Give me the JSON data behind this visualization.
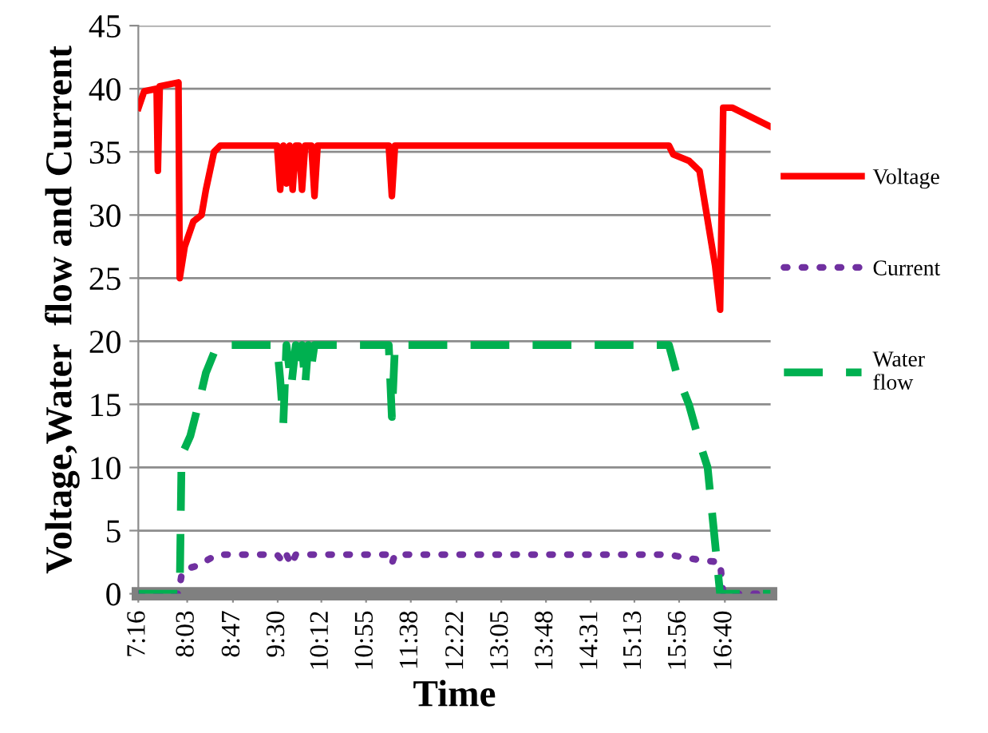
{
  "chart_data": {
    "type": "line",
    "xlabel": "Time",
    "ylabel": "Voltage,Water  flow and Current",
    "xlim": [
      7.2667,
      17.4
    ],
    "ylim": [
      0,
      45
    ],
    "yticks": [
      0,
      5,
      10,
      15,
      20,
      25,
      30,
      35,
      40,
      45
    ],
    "xticks": [
      {
        "value": 7.2667,
        "label": "7:16"
      },
      {
        "value": 8.05,
        "label": "8:03"
      },
      {
        "value": 8.7833,
        "label": "8:47"
      },
      {
        "value": 9.5,
        "label": "9:30"
      },
      {
        "value": 10.2,
        "label": "10:12"
      },
      {
        "value": 10.9167,
        "label": "10:55"
      },
      {
        "value": 11.6333,
        "label": "11:38"
      },
      {
        "value": 12.3667,
        "label": "12:22"
      },
      {
        "value": 13.0833,
        "label": "13:05"
      },
      {
        "value": 13.8,
        "label": "13:48"
      },
      {
        "value": 14.5167,
        "label": "14:31"
      },
      {
        "value": 15.2167,
        "label": "15:13"
      },
      {
        "value": 15.9333,
        "label": "15:56"
      },
      {
        "value": 16.6667,
        "label": "16:40"
      }
    ],
    "grid": "y",
    "legend": "right",
    "series": [
      {
        "name": "Voltage",
        "color": "#ff0000",
        "line_style": "solid",
        "x": [
          7.27,
          7.36,
          7.56,
          7.58,
          7.61,
          7.91,
          7.93,
          8.01,
          8.15,
          8.28,
          8.35,
          8.48,
          8.58,
          9.49,
          9.54,
          9.59,
          9.64,
          9.69,
          9.74,
          9.79,
          9.84,
          9.89,
          9.94,
          10.04,
          10.09,
          10.14,
          11.28,
          11.33,
          11.38,
          15.77,
          15.84,
          16.09,
          16.26,
          16.51,
          16.59,
          16.64,
          16.79,
          17.4
        ],
        "values": [
          38.5,
          39.8,
          40.0,
          33.5,
          40.2,
          40.5,
          25,
          27.5,
          29.5,
          30,
          32,
          35,
          35.5,
          35.5,
          32,
          35.5,
          32.5,
          35.5,
          32,
          35.5,
          35.5,
          32,
          35.5,
          35.5,
          31.5,
          35.5,
          35.5,
          31.5,
          35.5,
          35.5,
          34.8,
          34.3,
          33.5,
          26,
          22.5,
          38.5,
          38.5,
          37
        ]
      },
      {
        "name": "Current",
        "color": "#7030a0",
        "line_style": "dotted",
        "x": [
          7.27,
          7.91,
          7.96,
          8.06,
          8.2,
          8.35,
          8.53,
          9.49,
          9.54,
          9.59,
          9.64,
          9.72,
          9.79,
          10.09,
          11.28,
          11.33,
          11.38,
          15.77,
          16.09,
          16.39,
          16.59,
          16.64,
          17.4
        ],
        "values": [
          0,
          0,
          1.5,
          2,
          2.2,
          2.6,
          3.1,
          3.1,
          2.8,
          2.5,
          3.1,
          2.3,
          3.1,
          3.1,
          3.1,
          2.4,
          3.1,
          3.1,
          2.8,
          2.6,
          2.5,
          0,
          0
        ]
      },
      {
        "name": "Water\nflow",
        "color": "#00b050",
        "line_style": "dashed",
        "x": [
          7.27,
          7.91,
          7.93,
          7.96,
          8.01,
          8.1,
          8.23,
          8.35,
          8.53,
          9.49,
          9.54,
          9.59,
          9.64,
          9.72,
          9.79,
          9.84,
          9.89,
          9.94,
          9.99,
          10.04,
          10.09,
          11.28,
          11.33,
          11.38,
          15.77,
          15.89,
          16.09,
          16.26,
          16.39,
          16.51,
          16.59,
          17.4
        ],
        "values": [
          0,
          0,
          0,
          11,
          11.5,
          12.5,
          15,
          17.5,
          19.7,
          19.7,
          17,
          13.5,
          19.7,
          16.5,
          19.7,
          18,
          19.7,
          16.5,
          19.7,
          18,
          19.7,
          19.7,
          14,
          19.7,
          19.7,
          17.5,
          15,
          12,
          10,
          4,
          0,
          0
        ]
      }
    ]
  }
}
